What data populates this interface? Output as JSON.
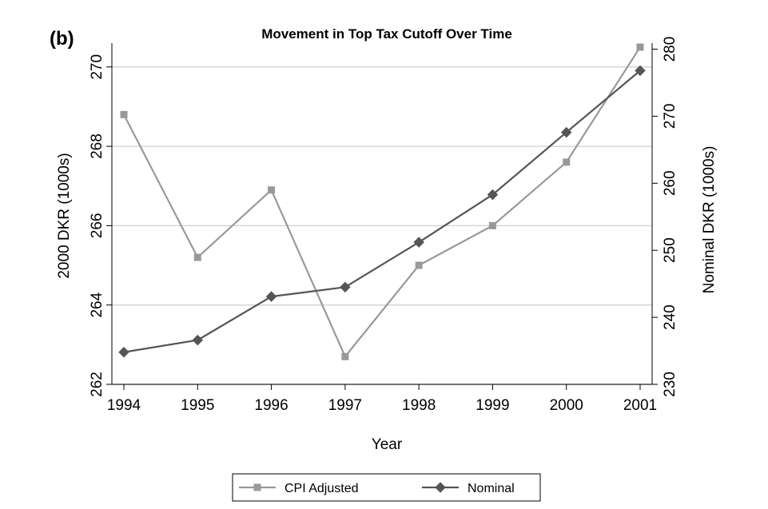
{
  "panel_label": "(b)",
  "chart_data": {
    "type": "line",
    "title": "Movement in Top Tax Cutoff Over Time",
    "xlabel": "Year",
    "ylabel_left": "2000 DKR (1000s)",
    "ylabel_right": "Nominal DKR (1000s)",
    "x": [
      1994,
      1995,
      1996,
      1997,
      1998,
      1999,
      2000,
      2001
    ],
    "x_ticks": [
      "1994",
      "1995",
      "1996",
      "1997",
      "1998",
      "1999",
      "2000",
      "2001"
    ],
    "y_left_range": [
      262,
      270.6
    ],
    "y_left_ticks": [
      "262",
      "264",
      "266",
      "268",
      "270"
    ],
    "y_right_range": [
      230,
      280.9
    ],
    "y_right_ticks": [
      "230",
      "240",
      "250",
      "260",
      "270",
      "280"
    ],
    "grid": true,
    "legend_position": "bottom",
    "series": [
      {
        "name": "CPI Adjusted",
        "axis": "left",
        "marker": "square",
        "color": "#999999",
        "values": [
          268.8,
          265.2,
          266.9,
          262.7,
          265.0,
          266.0,
          267.6,
          270.5
        ]
      },
      {
        "name": "Nominal",
        "axis": "right",
        "marker": "diamond",
        "color": "#555555",
        "values": [
          234.8,
          236.6,
          243.1,
          244.5,
          251.2,
          258.3,
          267.6,
          276.8
        ]
      }
    ]
  }
}
